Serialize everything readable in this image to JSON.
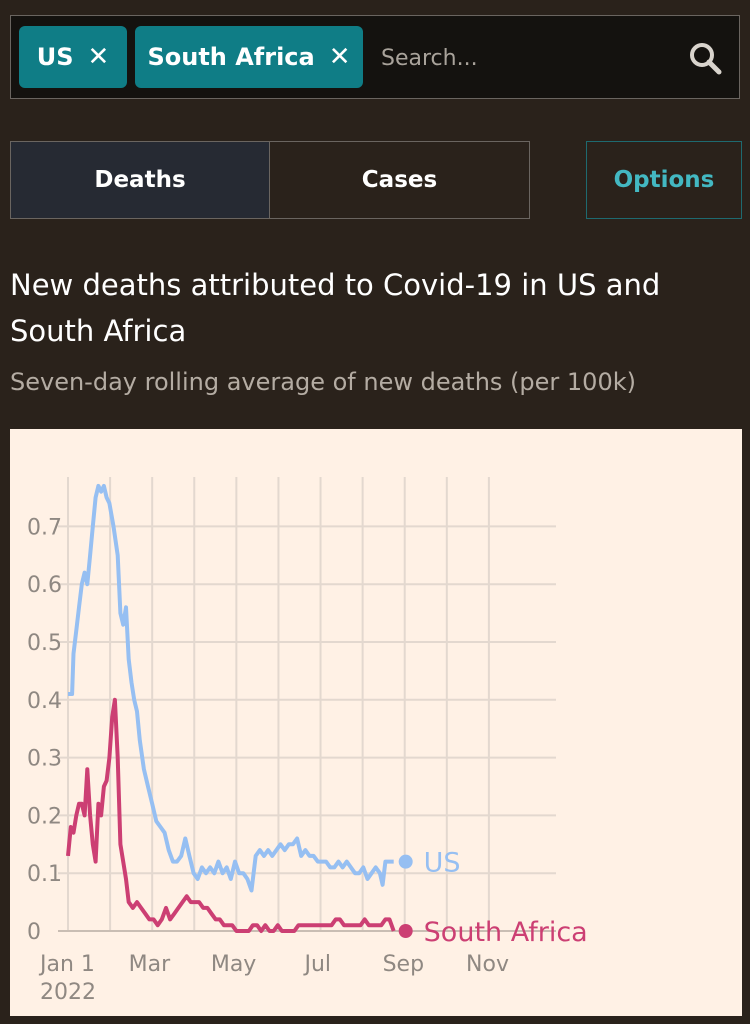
{
  "filters": {
    "chips": [
      {
        "label": "US",
        "remove_icon": "✕"
      },
      {
        "label": "South Africa",
        "remove_icon": "✕"
      }
    ],
    "search_placeholder": "Search..."
  },
  "tabs": {
    "deaths": "Deaths",
    "cases": "Cases",
    "options": "Options"
  },
  "chart_data": {
    "type": "line",
    "title": "New deaths attributed to Covid-19 in US and South Africa",
    "subtitle": "Seven-day rolling average of new deaths (per 100k)",
    "ylim": [
      0,
      0.75
    ],
    "y_ticks": [
      "0",
      "0.1",
      "0.2",
      "0.3",
      "0.4",
      "0.5",
      "0.6",
      "0.7"
    ],
    "x_ticks": [
      {
        "label": "Jan 1",
        "sublabel": "2022",
        "day": 0
      },
      {
        "label": "Mar",
        "sublabel": "",
        "day": 59
      },
      {
        "label": "May",
        "sublabel": "",
        "day": 120
      },
      {
        "label": "Jul",
        "sublabel": "",
        "day": 181
      },
      {
        "label": "Sep",
        "sublabel": "",
        "day": 243
      },
      {
        "label": "Nov",
        "sublabel": "",
        "day": 304
      }
    ],
    "grid": true,
    "colors": {
      "US": "#96bff2",
      "South Africa": "#cc3f73",
      "grid": "#e3d8cf",
      "tick_text": "#8f8882",
      "background": "#fff1e5"
    },
    "series": [
      {
        "name": "US",
        "points": [
          [
            0,
            0.41
          ],
          [
            3,
            0.41
          ],
          [
            4,
            0.48
          ],
          [
            6,
            0.52
          ],
          [
            8,
            0.56
          ],
          [
            10,
            0.6
          ],
          [
            12,
            0.62
          ],
          [
            14,
            0.6
          ],
          [
            16,
            0.65
          ],
          [
            18,
            0.7
          ],
          [
            20,
            0.75
          ],
          [
            22,
            0.77
          ],
          [
            24,
            0.76
          ],
          [
            26,
            0.77
          ],
          [
            28,
            0.75
          ],
          [
            30,
            0.74
          ],
          [
            33,
            0.7
          ],
          [
            36,
            0.65
          ],
          [
            38,
            0.55
          ],
          [
            40,
            0.53
          ],
          [
            42,
            0.56
          ],
          [
            44,
            0.47
          ],
          [
            46,
            0.43
          ],
          [
            48,
            0.4
          ],
          [
            50,
            0.38
          ],
          [
            52,
            0.33
          ],
          [
            55,
            0.28
          ],
          [
            58,
            0.25
          ],
          [
            61,
            0.22
          ],
          [
            64,
            0.19
          ],
          [
            67,
            0.18
          ],
          [
            70,
            0.17
          ],
          [
            73,
            0.14
          ],
          [
            76,
            0.12
          ],
          [
            79,
            0.12
          ],
          [
            82,
            0.13
          ],
          [
            85,
            0.16
          ],
          [
            88,
            0.13
          ],
          [
            91,
            0.1
          ],
          [
            94,
            0.09
          ],
          [
            97,
            0.11
          ],
          [
            100,
            0.1
          ],
          [
            103,
            0.11
          ],
          [
            106,
            0.1
          ],
          [
            109,
            0.12
          ],
          [
            112,
            0.1
          ],
          [
            115,
            0.11
          ],
          [
            118,
            0.09
          ],
          [
            121,
            0.12
          ],
          [
            124,
            0.1
          ],
          [
            127,
            0.1
          ],
          [
            130,
            0.09
          ],
          [
            133,
            0.07
          ],
          [
            136,
            0.13
          ],
          [
            139,
            0.14
          ],
          [
            142,
            0.13
          ],
          [
            145,
            0.14
          ],
          [
            148,
            0.13
          ],
          [
            151,
            0.14
          ],
          [
            154,
            0.15
          ],
          [
            157,
            0.14
          ],
          [
            160,
            0.15
          ],
          [
            163,
            0.15
          ],
          [
            166,
            0.16
          ],
          [
            169,
            0.13
          ],
          [
            172,
            0.14
          ],
          [
            175,
            0.13
          ],
          [
            178,
            0.13
          ],
          [
            181,
            0.12
          ],
          [
            184,
            0.12
          ],
          [
            187,
            0.12
          ],
          [
            190,
            0.11
          ],
          [
            193,
            0.11
          ],
          [
            196,
            0.12
          ],
          [
            199,
            0.11
          ],
          [
            202,
            0.12
          ],
          [
            205,
            0.11
          ],
          [
            208,
            0.1
          ],
          [
            211,
            0.1
          ],
          [
            214,
            0.11
          ],
          [
            217,
            0.09
          ],
          [
            220,
            0.1
          ],
          [
            223,
            0.11
          ],
          [
            226,
            0.1
          ],
          [
            228,
            0.08
          ],
          [
            230,
            0.12
          ],
          [
            233,
            0.12
          ],
          [
            236,
            0.12
          ]
        ]
      },
      {
        "name": "South Africa",
        "points": [
          [
            0,
            0.13
          ],
          [
            2,
            0.18
          ],
          [
            4,
            0.17
          ],
          [
            6,
            0.2
          ],
          [
            8,
            0.22
          ],
          [
            10,
            0.22
          ],
          [
            12,
            0.2
          ],
          [
            14,
            0.28
          ],
          [
            16,
            0.2
          ],
          [
            18,
            0.15
          ],
          [
            20,
            0.12
          ],
          [
            22,
            0.22
          ],
          [
            24,
            0.2
          ],
          [
            26,
            0.25
          ],
          [
            28,
            0.26
          ],
          [
            30,
            0.3
          ],
          [
            32,
            0.37
          ],
          [
            34,
            0.4
          ],
          [
            36,
            0.3
          ],
          [
            38,
            0.15
          ],
          [
            40,
            0.12
          ],
          [
            42,
            0.09
          ],
          [
            44,
            0.05
          ],
          [
            47,
            0.04
          ],
          [
            50,
            0.05
          ],
          [
            53,
            0.04
          ],
          [
            56,
            0.03
          ],
          [
            59,
            0.02
          ],
          [
            62,
            0.02
          ],
          [
            65,
            0.01
          ],
          [
            68,
            0.02
          ],
          [
            71,
            0.04
          ],
          [
            74,
            0.02
          ],
          [
            77,
            0.03
          ],
          [
            80,
            0.04
          ],
          [
            83,
            0.05
          ],
          [
            86,
            0.06
          ],
          [
            89,
            0.05
          ],
          [
            92,
            0.05
          ],
          [
            95,
            0.05
          ],
          [
            98,
            0.04
          ],
          [
            101,
            0.04
          ],
          [
            104,
            0.03
          ],
          [
            107,
            0.02
          ],
          [
            110,
            0.02
          ],
          [
            113,
            0.01
          ],
          [
            116,
            0.01
          ],
          [
            119,
            0.01
          ],
          [
            122,
            0.0
          ],
          [
            125,
            0.0
          ],
          [
            128,
            0.0
          ],
          [
            131,
            0.0
          ],
          [
            134,
            0.01
          ],
          [
            137,
            0.01
          ],
          [
            140,
            0.0
          ],
          [
            143,
            0.01
          ],
          [
            146,
            0.0
          ],
          [
            149,
            0.0
          ],
          [
            152,
            0.01
          ],
          [
            155,
            0.0
          ],
          [
            158,
            0.0
          ],
          [
            161,
            0.0
          ],
          [
            164,
            0.0
          ],
          [
            167,
            0.01
          ],
          [
            170,
            0.01
          ],
          [
            173,
            0.01
          ],
          [
            176,
            0.01
          ],
          [
            179,
            0.01
          ],
          [
            182,
            0.01
          ],
          [
            185,
            0.01
          ],
          [
            188,
            0.01
          ],
          [
            191,
            0.01
          ],
          [
            194,
            0.02
          ],
          [
            197,
            0.02
          ],
          [
            200,
            0.01
          ],
          [
            203,
            0.01
          ],
          [
            206,
            0.01
          ],
          [
            209,
            0.01
          ],
          [
            212,
            0.01
          ],
          [
            215,
            0.02
          ],
          [
            218,
            0.01
          ],
          [
            221,
            0.01
          ],
          [
            224,
            0.01
          ],
          [
            227,
            0.01
          ],
          [
            230,
            0.02
          ],
          [
            233,
            0.02
          ],
          [
            236,
            0.0
          ]
        ]
      }
    ],
    "end_labels": [
      {
        "series": "US",
        "text": "US"
      },
      {
        "series": "South Africa",
        "text": "South Africa"
      }
    ]
  }
}
